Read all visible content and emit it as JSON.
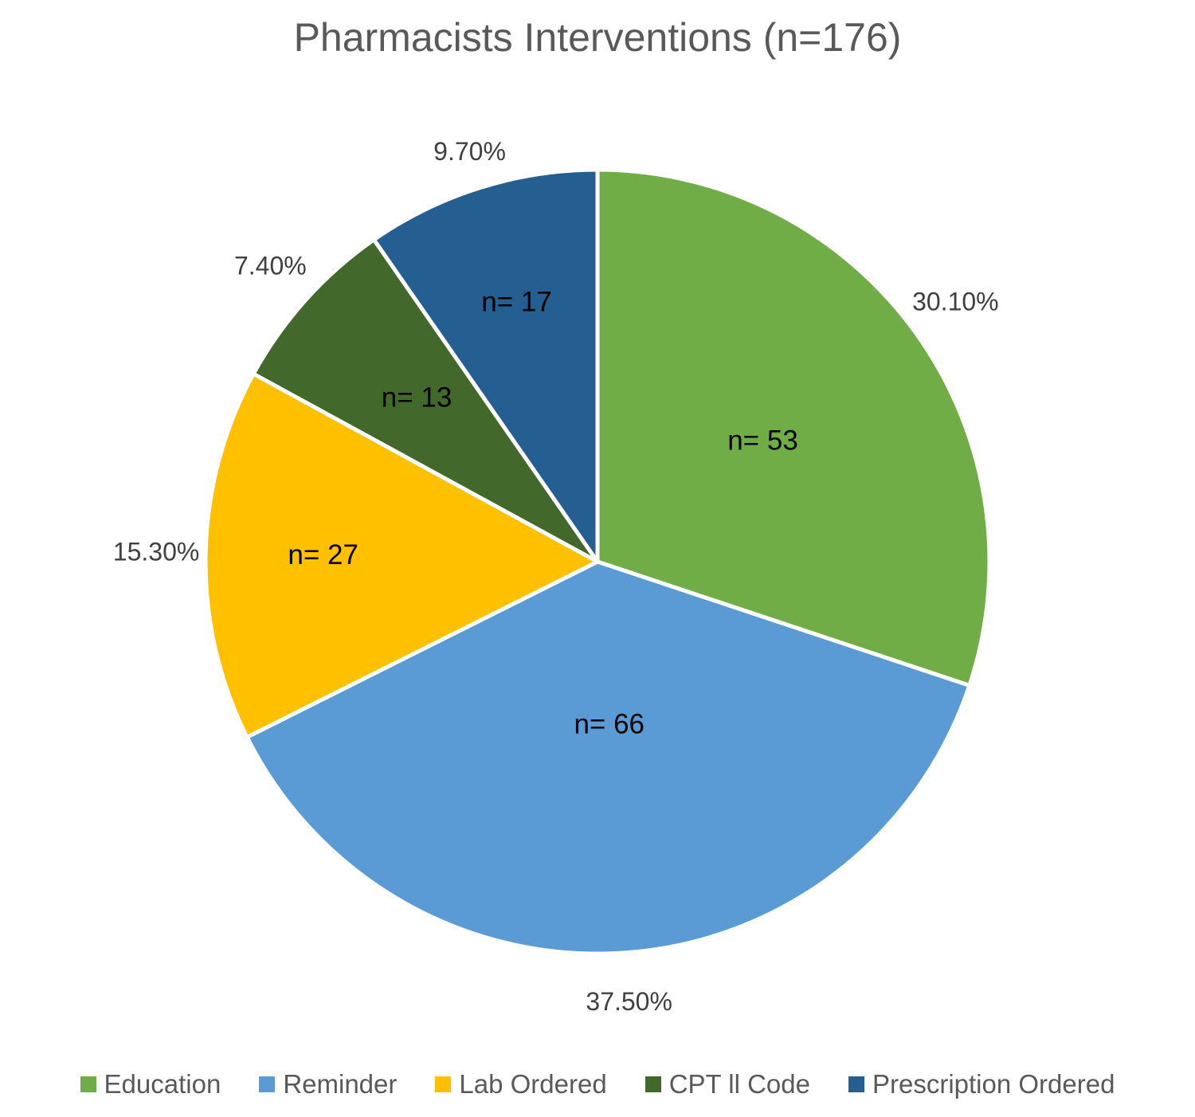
{
  "chart_data": {
    "type": "pie",
    "title": "Pharmacists Interventions (n=176)",
    "slices": [
      {
        "label": "Education",
        "count": 53,
        "count_label": "n= 53",
        "percent": 30.1,
        "percent_label": "30.10%",
        "color": "#70AD47"
      },
      {
        "label": "Reminder",
        "count": 66,
        "count_label": "n= 66",
        "percent": 37.5,
        "percent_label": "37.50%",
        "color": "#5B9BD5"
      },
      {
        "label": "Lab Ordered",
        "count": 27,
        "count_label": "n= 27",
        "percent": 15.3,
        "percent_label": "15.30%",
        "color": "#FFC000"
      },
      {
        "label": "CPT ll Code",
        "count": 13,
        "count_label": "n= 13",
        "percent": 7.4,
        "percent_label": "7.40%",
        "color": "#43682B"
      },
      {
        "label": "Prescription Ordered",
        "count": 17,
        "count_label": "n= 17",
        "percent": 9.7,
        "percent_label": "9.70%",
        "color": "#255E91"
      }
    ],
    "legend_position": "bottom",
    "start_angle": "12 o'clock",
    "direction": "clockwise"
  }
}
